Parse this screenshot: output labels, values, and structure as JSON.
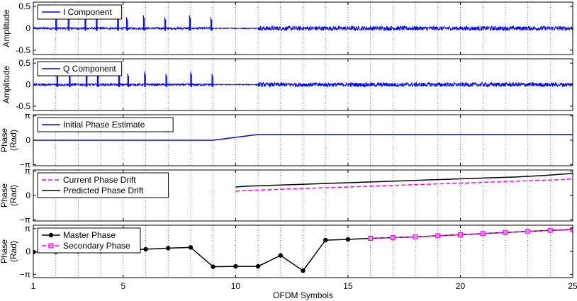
{
  "chart_data": {
    "type": "line",
    "xlabel": "OFDM Symbols",
    "xlim": [
      1,
      25
    ],
    "xticks": [
      1,
      5,
      10,
      15,
      20,
      25
    ],
    "grid": "vertical dotted at every integer symbol",
    "panels": [
      {
        "id": "i",
        "ylabel": [
          "Amplitude"
        ],
        "ylim": [
          -0.6,
          0.6
        ],
        "yticks": [
          {
            "v": -0.5,
            "label": "-0.5"
          },
          {
            "v": 0,
            "label": "0"
          },
          {
            "v": 0.5,
            "label": "0.5"
          }
        ],
        "legend_position": "top-left",
        "series": [
          {
            "name": "I Component",
            "kind": "signal",
            "color": "#0000ff",
            "style": "solid",
            "spike_x": [
              2,
              2.55,
              3.3,
              3.8,
              4.75,
              5.15,
              5.9,
              6.85,
              7.95,
              8.9
            ],
            "spike_amplitude": 0.3,
            "noise_level_preamble": 0.025,
            "noise_level_data": 0.05,
            "data_start_x": 11
          }
        ]
      },
      {
        "id": "q",
        "ylabel": [
          "Amplitude"
        ],
        "ylim": [
          -0.6,
          0.6
        ],
        "yticks": [
          {
            "v": -0.5,
            "label": "-0.5"
          },
          {
            "v": 0,
            "label": "0"
          },
          {
            "v": 0.5,
            "label": "0.5"
          }
        ],
        "legend_position": "top-left",
        "series": [
          {
            "name": "Q Component",
            "kind": "signal",
            "color": "#0000ff",
            "style": "solid",
            "spike_x": [
              2.05,
              2.6,
              3.35,
              3.85,
              4.8,
              5.2,
              5.95,
              6.9,
              8.0,
              8.95
            ],
            "spike_amplitude": 0.3,
            "noise_level_preamble": 0.025,
            "noise_level_data": 0.05,
            "data_start_x": 11
          }
        ]
      },
      {
        "id": "init",
        "ylabel": [
          "Phase",
          "(Rad)"
        ],
        "ylim": [
          -3.3,
          3.3
        ],
        "yticks": [
          {
            "v": -3.1416,
            "label": "−π"
          },
          {
            "v": 0,
            "label": "0"
          },
          {
            "v": 3.1416,
            "label": "π"
          }
        ],
        "legend_position": "top-left",
        "series": [
          {
            "name": "Initial Phase Estimate",
            "kind": "line",
            "color": "#0000ff",
            "style": "solid",
            "x": [
              1,
              9,
              11,
              25
            ],
            "y": [
              0,
              0,
              0.75,
              0.75
            ]
          }
        ]
      },
      {
        "id": "drift",
        "ylabel": [
          "Phase",
          "(Rad)"
        ],
        "ylim": [
          -3.3,
          3.3
        ],
        "yticks": [
          {
            "v": -3.1416,
            "label": "−π"
          },
          {
            "v": 0,
            "label": "0"
          },
          {
            "v": 3.1416,
            "label": "π"
          }
        ],
        "legend_position": "top-left",
        "series": [
          {
            "name": "Current Phase Drift",
            "kind": "line",
            "color": "#ff00ff",
            "style": "dashed",
            "x": [
              10,
              10.5,
              11.5,
              12.5,
              13.5,
              14.5,
              15.5,
              16.5,
              17.5,
              18.5,
              19.5,
              20.5,
              21.5,
              22.5,
              23.5,
              24.5,
              25
            ],
            "y": [
              0.55,
              0.65,
              0.75,
              0.85,
              0.95,
              1.05,
              1.15,
              1.25,
              1.35,
              1.45,
              1.55,
              1.65,
              1.75,
              1.85,
              1.95,
              2.05,
              2.15
            ]
          },
          {
            "name": "Predicted Phase Drift",
            "kind": "line",
            "color": "#000000",
            "style": "solid",
            "x": [
              10,
              10.5,
              11.5,
              12.5,
              13.5,
              14.5,
              15.5,
              16.5,
              17.5,
              18.5,
              19.5,
              20.5,
              21.5,
              22.5,
              23.5,
              24.5,
              25
            ],
            "y": [
              1.1,
              1.2,
              1.3,
              1.4,
              1.5,
              1.6,
              1.7,
              1.8,
              1.9,
              2.0,
              2.1,
              2.2,
              2.3,
              2.4,
              2.55,
              2.75,
              2.85
            ]
          }
        ]
      },
      {
        "id": "master",
        "ylabel": [
          "Phase",
          "(Rad)"
        ],
        "ylim": [
          -3.6,
          3.6
        ],
        "yticks": [
          {
            "v": -3.1416,
            "label": "−π"
          },
          {
            "v": 0,
            "label": "0"
          },
          {
            "v": 3.1416,
            "label": "π"
          }
        ],
        "legend_position": "top-left",
        "series": [
          {
            "name": "Master Phase",
            "kind": "line",
            "color": "#000000",
            "style": "solid",
            "marker": "circle",
            "x": [
              1,
              2,
              3,
              4,
              5,
              6,
              7,
              8,
              9,
              10,
              11,
              12,
              13,
              14,
              15,
              16,
              17,
              18,
              19,
              20,
              21,
              22,
              23,
              24,
              25
            ],
            "y": [
              -0.08,
              -0.05,
              0.0,
              0.0,
              0.15,
              0.3,
              0.45,
              0.55,
              -2.1,
              -2.05,
              -2.05,
              -0.55,
              -2.65,
              1.55,
              1.65,
              1.8,
              1.9,
              2.0,
              2.15,
              2.3,
              2.45,
              2.6,
              2.75,
              2.9,
              3.0
            ]
          },
          {
            "name": "Secondary Phase",
            "kind": "line",
            "color": "#ff00ff",
            "style": "dashed",
            "marker": "square",
            "x": [
              16,
              17,
              18,
              19,
              20,
              21,
              22,
              23,
              24,
              25
            ],
            "y": [
              1.8,
              1.9,
              2.0,
              2.15,
              2.3,
              2.45,
              2.6,
              2.75,
              2.9,
              3.0
            ]
          }
        ]
      }
    ]
  }
}
